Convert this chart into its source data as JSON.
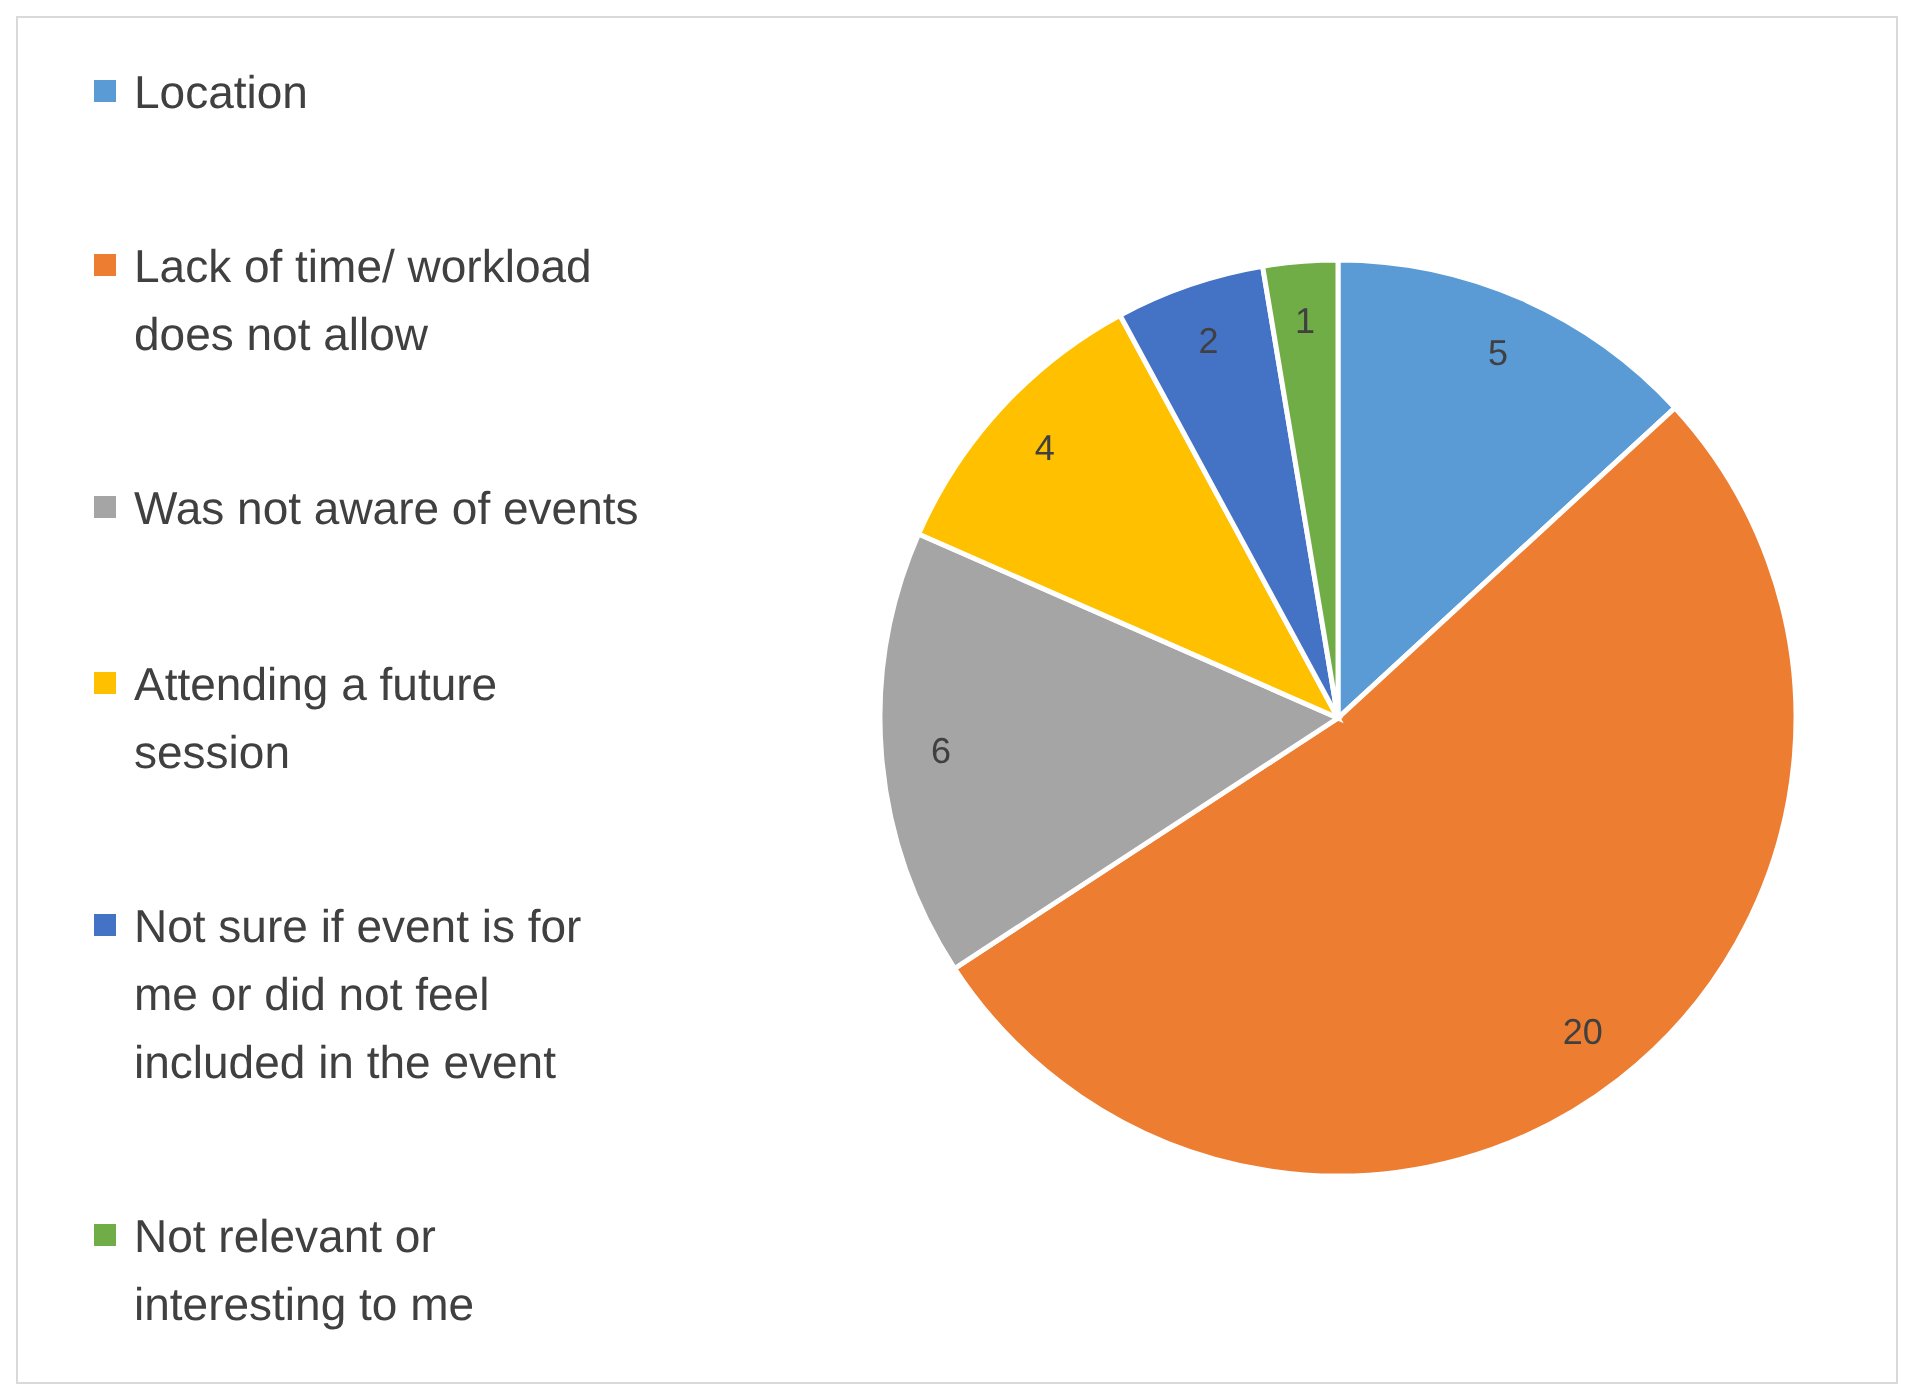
{
  "chart_data": {
    "type": "pie",
    "categories": [
      "Location",
      "Lack of time/ workload does not allow",
      "Was not aware of events",
      "Attending a future session",
      "Not sure if event is for me or did not feel included in the event",
      "Not relevant or interesting to me"
    ],
    "values": [
      5,
      20,
      6,
      4,
      2,
      1
    ],
    "colors": [
      "#5b9bd5",
      "#ed7d31",
      "#a5a5a5",
      "#ffc000",
      "#4472c4",
      "#70ad47"
    ],
    "data_labels": true,
    "legend": "left"
  }
}
